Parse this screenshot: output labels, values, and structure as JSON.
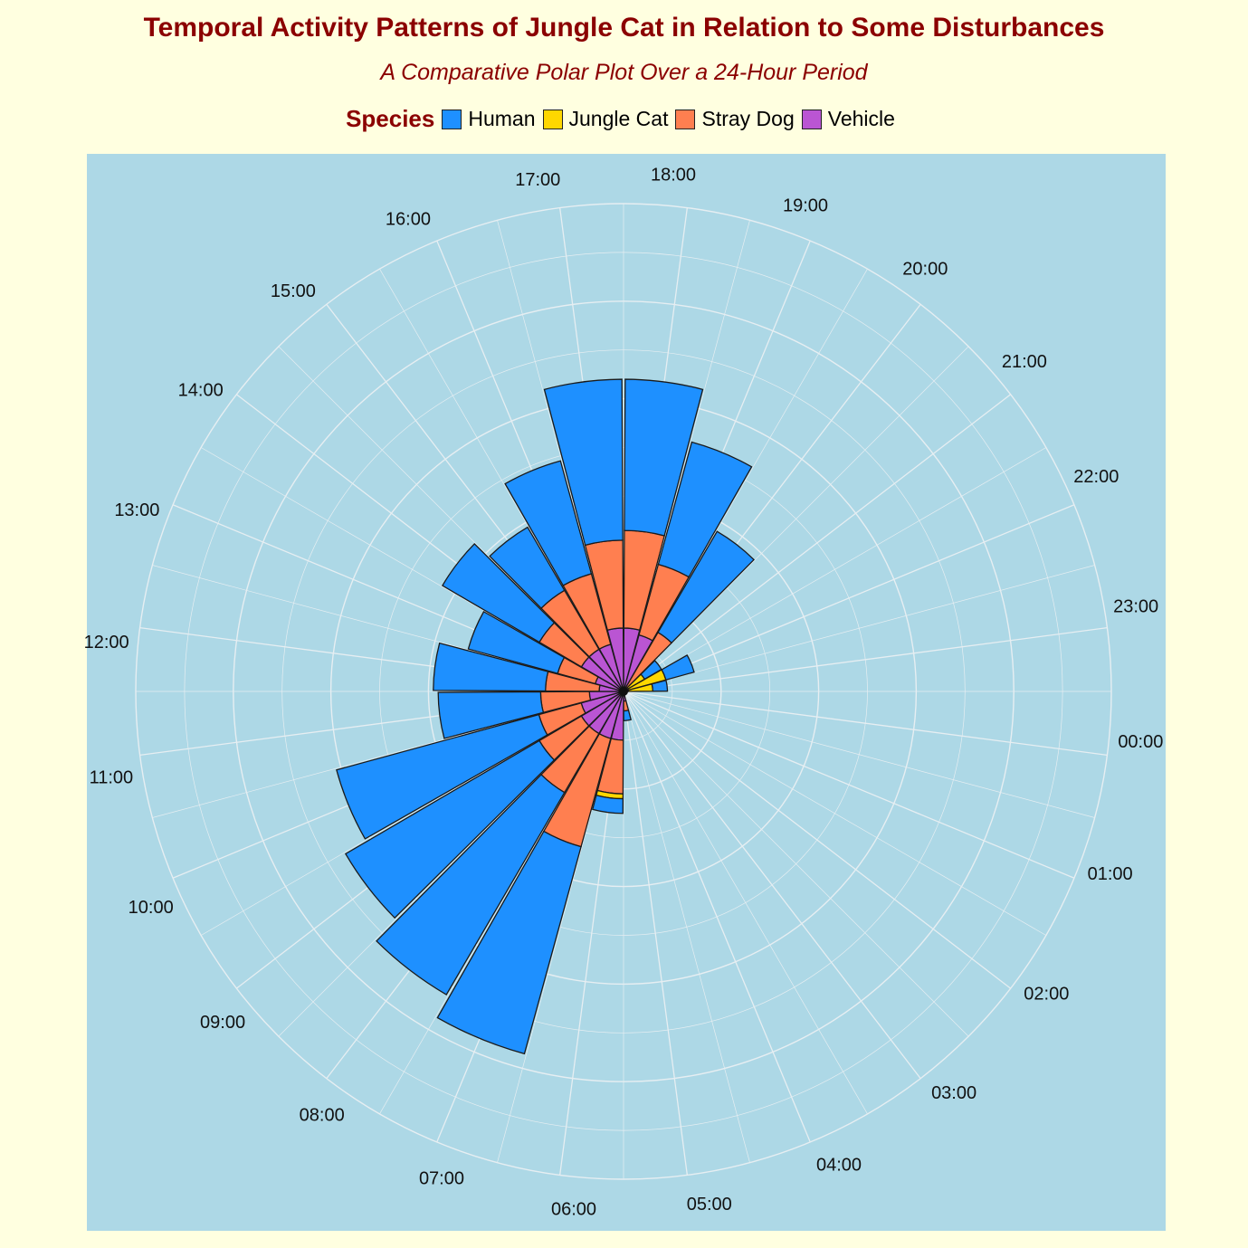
{
  "header": {
    "title": "Temporal Activity Patterns of Jungle Cat in Relation to Some Disturbances",
    "subtitle": "A Comparative Polar Plot Over a 24-Hour Period"
  },
  "legend": {
    "title": "Species",
    "items": [
      {
        "label": "Human",
        "color": "#1E90FF"
      },
      {
        "label": "Jungle Cat",
        "color": "#FFD700"
      },
      {
        "label": "Stray Dog",
        "color": "#FF7F50"
      },
      {
        "label": "Vehicle",
        "color": "#BA55D3"
      }
    ]
  },
  "chart_data": {
    "type": "bar",
    "coord": "polar",
    "stacked": true,
    "stack_order": [
      "Vehicle",
      "Stray Dog",
      "Jungle Cat",
      "Human"
    ],
    "categories": [
      "00:00",
      "01:00",
      "02:00",
      "03:00",
      "04:00",
      "05:00",
      "06:00",
      "07:00",
      "08:00",
      "09:00",
      "10:00",
      "11:00",
      "12:00",
      "13:00",
      "14:00",
      "15:00",
      "16:00",
      "17:00",
      "18:00",
      "19:00",
      "20:00",
      "21:00",
      "22:00",
      "23:00"
    ],
    "series": [
      {
        "name": "Vehicle",
        "color": "#BA55D3",
        "values": [
          0,
          0,
          0,
          0,
          0,
          0.2,
          1.0,
          1.0,
          1.0,
          1.0,
          0.9,
          0.7,
          0.5,
          0.6,
          1.0,
          1.0,
          1.0,
          1.3,
          1.3,
          1.2,
          0,
          0,
          0,
          0
        ]
      },
      {
        "name": "Stray Dog",
        "color": "#FF7F50",
        "values": [
          0,
          0,
          0,
          0,
          0,
          0.2,
          1.1,
          2.3,
          1.4,
          1.0,
          0.9,
          1.0,
          1.1,
          0.8,
          1.0,
          1.4,
          1.5,
          1.8,
          2.0,
          1.5,
          1.4,
          0.1,
          0.1,
          0.1
        ]
      },
      {
        "name": "Jungle Cat",
        "color": "#FFD700",
        "values": [
          0,
          0,
          0,
          0,
          0,
          0,
          0.1,
          0,
          0,
          0,
          0,
          0,
          0,
          0,
          0,
          0,
          0,
          0,
          0,
          0,
          0,
          0.4,
          0.8,
          0.5
        ]
      },
      {
        "name": "Human",
        "color": "#1E90FF",
        "values": [
          0,
          0,
          0,
          0,
          0,
          0.2,
          0.3,
          4.4,
          4.8,
          4.6,
          4.3,
          2.1,
          2.3,
          1.9,
          2.3,
          1.5,
          2.4,
          3.3,
          3.1,
          2.6,
          2.4,
          0.4,
          0.6,
          0.3
        ]
      }
    ],
    "r_range": [
      0,
      10
    ],
    "grid": true
  }
}
